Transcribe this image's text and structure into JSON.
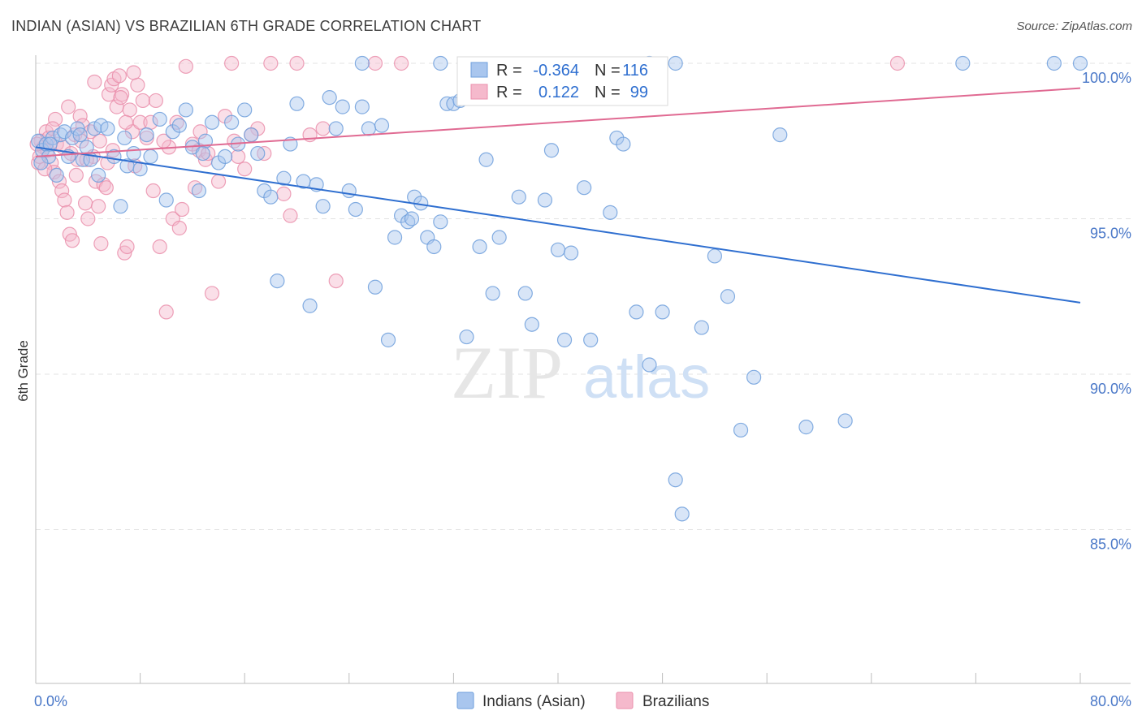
{
  "title": "INDIAN (ASIAN) VS BRAZILIAN 6TH GRADE CORRELATION CHART",
  "source": "Source: ZipAtlas.com",
  "watermark": {
    "zip": "ZIP",
    "atlas": "atlas"
  },
  "colors": {
    "blue_fill": "#a9c6ee",
    "blue_stroke": "#6e9fdc",
    "blue_line": "#2f6fd0",
    "pink_fill": "#f5b9cc",
    "pink_stroke": "#ea8fac",
    "pink_line": "#e06a92",
    "tick_text": "#4a78c8",
    "grid": "#e3e3e3"
  },
  "legend": {
    "blue": {
      "r_label": "R =",
      "r_value": "-0.364",
      "n_label": "N =",
      "n_value": "116"
    },
    "pink": {
      "r_label": "R =",
      "r_value": "0.122",
      "n_label": "N =",
      "n_value": "99"
    }
  },
  "bottom_legend": [
    "Indians (Asian)",
    "Brazilians"
  ],
  "chart_data": {
    "type": "scatter",
    "title": "INDIAN (ASIAN) VS BRAZILIAN 6TH GRADE CORRELATION CHART",
    "xlabel": "",
    "ylabel": "6th Grade",
    "xlim": [
      0,
      80
    ],
    "ylim": [
      80.5,
      100.8
    ],
    "x_tick_labels": [
      {
        "v": 0,
        "label": "0.0%"
      },
      {
        "v": 80,
        "label": "80.0%"
      }
    ],
    "y_tick_labels": [
      {
        "v": 100,
        "label": "100.0%"
      },
      {
        "v": 95,
        "label": "95.0%"
      },
      {
        "v": 90,
        "label": "90.0%"
      },
      {
        "v": 85,
        "label": "85.0%"
      }
    ],
    "grid": true,
    "legend_position": "top-center",
    "series": [
      {
        "name": "Indians (Asian)",
        "color": "#6e9fdc",
        "trend": [
          [
            0,
            97.3
          ],
          [
            80,
            92.3
          ]
        ],
        "points": [
          [
            0.2,
            97.5
          ],
          [
            0.5,
            97.2
          ],
          [
            0.8,
            97.4
          ],
          [
            1,
            97.0
          ],
          [
            1.3,
            97.6
          ],
          [
            1.6,
            96.4
          ],
          [
            1.9,
            97.7
          ],
          [
            2.2,
            97.8
          ],
          [
            2.5,
            97.0
          ],
          [
            2.8,
            97.6
          ],
          [
            3.2,
            97.9
          ],
          [
            3.6,
            96.9
          ],
          [
            3.9,
            97.3
          ],
          [
            4.2,
            96.9
          ],
          [
            4.5,
            97.9
          ],
          [
            4.8,
            96.4
          ],
          [
            5,
            98.0
          ],
          [
            5.5,
            97.9
          ],
          [
            6,
            97.0
          ],
          [
            6.5,
            95.4
          ],
          [
            7,
            96.7
          ],
          [
            7.5,
            97.1
          ],
          [
            8,
            96.6
          ],
          [
            8.5,
            97.7
          ],
          [
            9.5,
            98.2
          ],
          [
            10,
            95.6
          ],
          [
            10.5,
            97.8
          ],
          [
            11,
            98.0
          ],
          [
            11.5,
            98.5
          ],
          [
            12,
            97.3
          ],
          [
            12.5,
            95.9
          ],
          [
            13,
            97.5
          ],
          [
            13.5,
            98.1
          ],
          [
            14,
            96.8
          ],
          [
            14.5,
            97.0
          ],
          [
            15,
            98.1
          ],
          [
            15.5,
            97.4
          ],
          [
            16,
            98.5
          ],
          [
            16.5,
            97.7
          ],
          [
            17,
            97.1
          ],
          [
            17.5,
            95.9
          ],
          [
            18,
            95.7
          ],
          [
            18.5,
            93.0
          ],
          [
            19,
            96.3
          ],
          [
            19.5,
            97.4
          ],
          [
            20,
            98.7
          ],
          [
            20.5,
            96.2
          ],
          [
            21,
            92.2
          ],
          [
            21.5,
            96.1
          ],
          [
            22,
            95.4
          ],
          [
            22.5,
            98.9
          ],
          [
            23,
            97.9
          ],
          [
            23.5,
            98.6
          ],
          [
            24,
            95.9
          ],
          [
            24.5,
            95.3
          ],
          [
            25,
            98.6
          ],
          [
            25.5,
            97.9
          ],
          [
            26,
            92.8
          ],
          [
            26.5,
            98.0
          ],
          [
            27,
            91.1
          ],
          [
            27.5,
            94.4
          ],
          [
            28,
            95.1
          ],
          [
            28.5,
            94.9
          ],
          [
            29,
            95.7
          ],
          [
            29.5,
            95.5
          ],
          [
            30,
            94.4
          ],
          [
            30.5,
            94.1
          ],
          [
            31,
            94.9
          ],
          [
            31.5,
            98.7
          ],
          [
            32,
            98.7
          ],
          [
            32.5,
            98.8
          ],
          [
            33,
            91.2
          ],
          [
            34,
            94.1
          ],
          [
            34.5,
            96.9
          ],
          [
            35,
            92.6
          ],
          [
            35.5,
            94.4
          ],
          [
            37,
            95.7
          ],
          [
            37.5,
            92.6
          ],
          [
            38,
            91.6
          ],
          [
            39,
            95.6
          ],
          [
            39.5,
            97.2
          ],
          [
            40,
            94.0
          ],
          [
            40.5,
            91.1
          ],
          [
            41,
            93.9
          ],
          [
            42,
            96.0
          ],
          [
            42.5,
            91.1
          ],
          [
            44,
            95.2
          ],
          [
            44.5,
            97.6
          ],
          [
            45,
            97.4
          ],
          [
            46,
            92.0
          ],
          [
            47,
            90.3
          ],
          [
            48,
            92.0
          ],
          [
            49,
            86.6
          ],
          [
            49.5,
            85.5
          ],
          [
            51,
            91.5
          ],
          [
            52,
            93.8
          ],
          [
            53,
            92.5
          ],
          [
            54,
            88.2
          ],
          [
            55,
            89.9
          ],
          [
            57,
            97.7
          ],
          [
            59,
            88.3
          ],
          [
            62,
            88.5
          ],
          [
            25,
            100
          ],
          [
            31,
            100
          ],
          [
            47,
            100
          ],
          [
            49,
            100
          ],
          [
            71,
            100
          ],
          [
            78,
            100
          ],
          [
            80,
            100
          ],
          [
            0.4,
            96.8
          ],
          [
            1.1,
            97.4
          ],
          [
            3.4,
            97.7
          ],
          [
            6.8,
            97.6
          ],
          [
            8.8,
            97.0
          ],
          [
            12.8,
            97.1
          ],
          [
            28.8,
            95.0
          ]
        ]
      },
      {
        "name": "Brazilians",
        "color": "#ea8fac",
        "trend": [
          [
            0,
            97.0
          ],
          [
            80,
            99.2
          ]
        ],
        "points": [
          [
            0.2,
            96.8
          ],
          [
            0.4,
            97.5
          ],
          [
            0.6,
            97.3
          ],
          [
            0.8,
            97.8
          ],
          [
            1,
            97.6
          ],
          [
            1.2,
            96.8
          ],
          [
            1.4,
            96.5
          ],
          [
            1.6,
            97.4
          ],
          [
            1.8,
            96.2
          ],
          [
            2,
            95.9
          ],
          [
            2.2,
            95.6
          ],
          [
            2.4,
            95.2
          ],
          [
            2.6,
            94.5
          ],
          [
            2.8,
            94.3
          ],
          [
            3,
            97.7
          ],
          [
            3.2,
            96.9
          ],
          [
            3.4,
            98.3
          ],
          [
            3.6,
            98.0
          ],
          [
            3.8,
            95.5
          ],
          [
            4,
            95.0
          ],
          [
            4.2,
            97.8
          ],
          [
            4.4,
            97.0
          ],
          [
            4.6,
            96.2
          ],
          [
            4.8,
            95.4
          ],
          [
            5,
            94.2
          ],
          [
            5.2,
            96.1
          ],
          [
            5.4,
            96.0
          ],
          [
            5.6,
            99.0
          ],
          [
            5.8,
            99.3
          ],
          [
            6,
            99.5
          ],
          [
            6.2,
            98.6
          ],
          [
            6.4,
            99.6
          ],
          [
            6.6,
            99.0
          ],
          [
            6.8,
            93.9
          ],
          [
            7,
            94.1
          ],
          [
            7.2,
            98.5
          ],
          [
            7.4,
            97.8
          ],
          [
            7.6,
            96.7
          ],
          [
            7.8,
            99.3
          ],
          [
            8,
            98.1
          ],
          [
            8.5,
            97.6
          ],
          [
            9,
            95.9
          ],
          [
            9.5,
            94.1
          ],
          [
            10,
            92.0
          ],
          [
            10.5,
            95.0
          ],
          [
            11,
            94.7
          ],
          [
            11.5,
            99.9
          ],
          [
            12,
            97.4
          ],
          [
            12.5,
            97.2
          ],
          [
            13,
            96.9
          ],
          [
            13.5,
            92.6
          ],
          [
            14,
            96.2
          ],
          [
            14.5,
            98.3
          ],
          [
            15,
            100
          ],
          [
            15.5,
            97.0
          ],
          [
            16,
            96.6
          ],
          [
            17,
            97.9
          ],
          [
            18,
            100
          ],
          [
            19,
            95.8
          ],
          [
            19.5,
            95.1
          ],
          [
            20,
            100
          ],
          [
            21,
            97.7
          ],
          [
            22,
            97.9
          ],
          [
            23,
            93.0
          ],
          [
            26,
            100
          ],
          [
            28,
            100
          ],
          [
            66,
            100
          ],
          [
            1.5,
            98.2
          ],
          [
            2.5,
            98.6
          ],
          [
            3.5,
            97.5
          ],
          [
            4.5,
            99.4
          ],
          [
            5.5,
            96.8
          ],
          [
            6.5,
            98.9
          ],
          [
            7.5,
            99.7
          ],
          [
            8.2,
            98.8
          ],
          [
            9.2,
            98.8
          ],
          [
            10.2,
            97.3
          ],
          [
            11.2,
            95.3
          ],
          [
            12.2,
            96.0
          ],
          [
            13.2,
            97.1
          ],
          [
            0.3,
            97.0
          ],
          [
            0.7,
            96.6
          ],
          [
            0.9,
            97.2
          ],
          [
            1.3,
            97.9
          ],
          [
            2.1,
            97.3
          ],
          [
            2.7,
            97.1
          ],
          [
            3.1,
            96.4
          ],
          [
            3.9,
            96.9
          ],
          [
            4.9,
            97.5
          ],
          [
            5.9,
            97.2
          ],
          [
            6.9,
            98.1
          ],
          [
            8.8,
            98.1
          ],
          [
            9.8,
            97.5
          ],
          [
            10.8,
            98.1
          ],
          [
            12.6,
            97.8
          ],
          [
            15.2,
            97.5
          ],
          [
            16.5,
            97.7
          ],
          [
            17.5,
            97.1
          ],
          [
            0.1,
            97.4
          ]
        ]
      }
    ]
  }
}
